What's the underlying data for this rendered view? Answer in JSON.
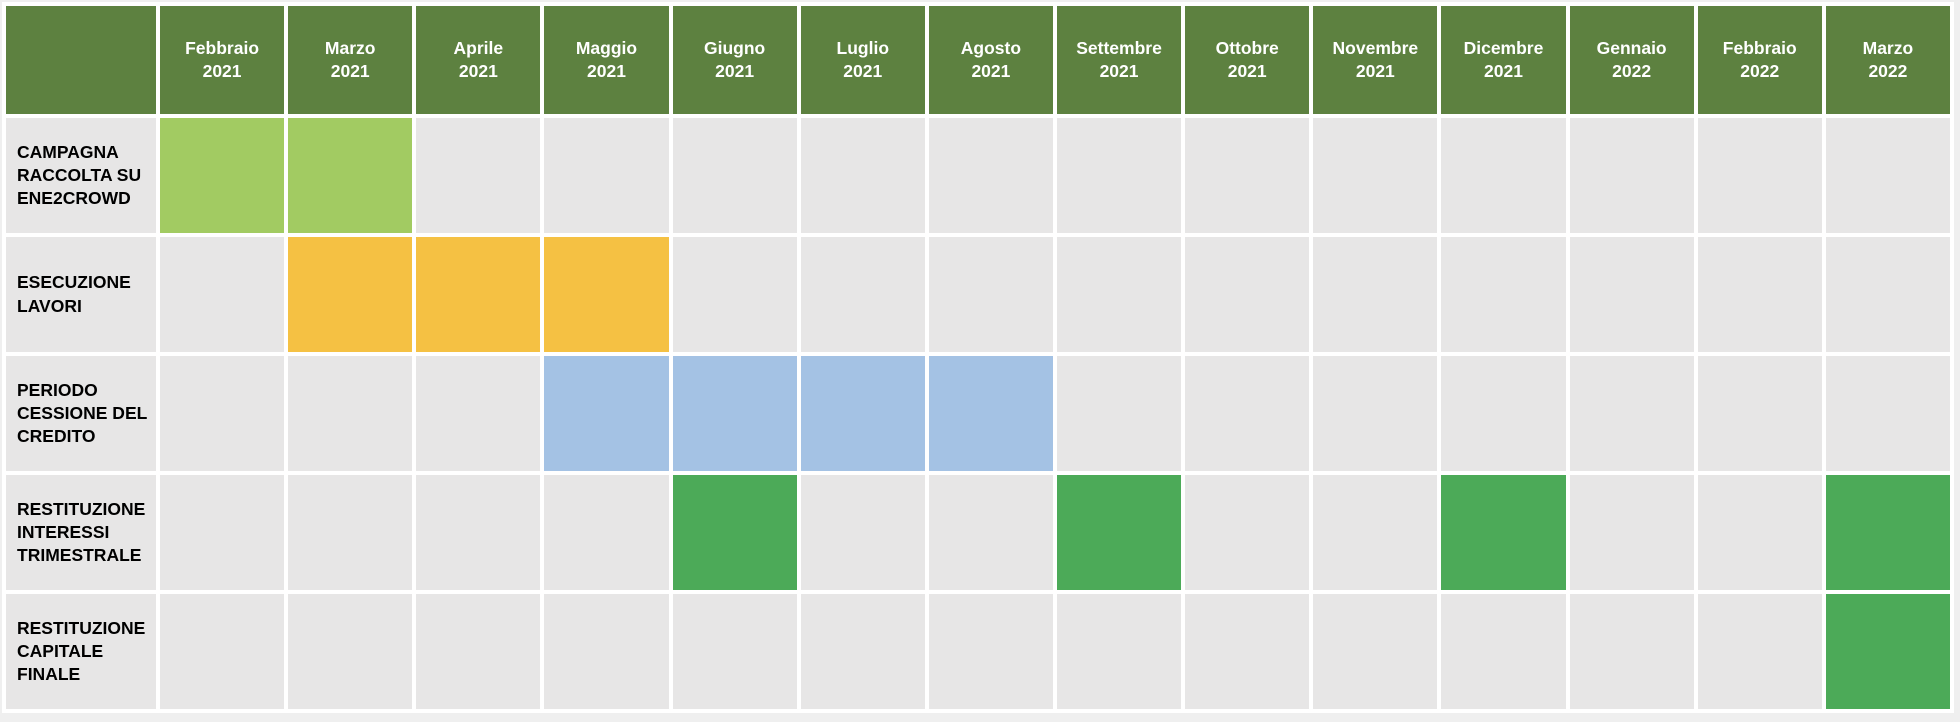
{
  "colors": {
    "outer_background": "#efefef",
    "grid_gap": "#ffffff",
    "header_background": "#5d8140",
    "header_text": "#ffffff",
    "empty_cell": "#e7e6e6",
    "label_cell_background": "#e7e6e6",
    "label_text": "#000000",
    "fill_light_green": "#a2cb62",
    "fill_orange": "#f5c143",
    "fill_blue": "#a4c2e4",
    "fill_green": "#4caa58"
  },
  "header": {
    "corner_label": "",
    "months": [
      {
        "month": "Febbraio",
        "year": "2021"
      },
      {
        "month": "Marzo",
        "year": "2021"
      },
      {
        "month": "Aprile",
        "year": "2021"
      },
      {
        "month": "Maggio",
        "year": "2021"
      },
      {
        "month": "Giugno",
        "year": "2021"
      },
      {
        "month": "Luglio",
        "year": "2021"
      },
      {
        "month": "Agosto",
        "year": "2021"
      },
      {
        "month": "Settembre",
        "year": "2021"
      },
      {
        "month": "Ottobre",
        "year": "2021"
      },
      {
        "month": "Novembre",
        "year": "2021"
      },
      {
        "month": "Dicembre",
        "year": "2021"
      },
      {
        "month": "Gennaio",
        "year": "2022"
      },
      {
        "month": "Febbraio",
        "year": "2022"
      },
      {
        "month": "Marzo",
        "year": "2022"
      }
    ]
  },
  "rows": [
    {
      "label": "CAMPAGNA RACCOLTA SU ENE2CROWD",
      "fill": "fill_light_green",
      "filled_indexes": [
        0,
        1
      ]
    },
    {
      "label": "ESECUZIONE LAVORI",
      "fill": "fill_orange",
      "filled_indexes": [
        1,
        2,
        3
      ]
    },
    {
      "label": "PERIODO CESSIONE DEL CREDITO",
      "fill": "fill_blue",
      "filled_indexes": [
        3,
        4,
        5,
        6
      ]
    },
    {
      "label": "RESTITUZIONE INTERESSI TRIMESTRALE",
      "fill": "fill_green",
      "filled_indexes": [
        4,
        7,
        10,
        13
      ]
    },
    {
      "label": "RESTITUZIONE CAPITALE FINALE",
      "fill": "fill_green",
      "filled_indexes": [
        13
      ]
    }
  ],
  "chart_data": {
    "type": "gantt",
    "title": "",
    "categories": [
      "Febbraio 2021",
      "Marzo 2021",
      "Aprile 2021",
      "Maggio 2021",
      "Giugno 2021",
      "Luglio 2021",
      "Agosto 2021",
      "Settembre 2021",
      "Ottobre 2021",
      "Novembre 2021",
      "Dicembre 2021",
      "Gennaio 2022",
      "Febbraio 2022",
      "Marzo 2022"
    ],
    "series": [
      {
        "name": "CAMPAGNA RACCOLTA SU ENE2CROWD",
        "color": "#a2cb62",
        "active_months": [
          "Febbraio 2021",
          "Marzo 2021"
        ]
      },
      {
        "name": "ESECUZIONE LAVORI",
        "color": "#f5c143",
        "active_months": [
          "Marzo 2021",
          "Aprile 2021",
          "Maggio 2021"
        ]
      },
      {
        "name": "PERIODO CESSIONE DEL CREDITO",
        "color": "#a4c2e4",
        "active_months": [
          "Maggio 2021",
          "Giugno 2021",
          "Luglio 2021",
          "Agosto 2021"
        ]
      },
      {
        "name": "RESTITUZIONE INTERESSI TRIMESTRALE",
        "color": "#4caa58",
        "active_months": [
          "Giugno 2021",
          "Settembre 2021",
          "Dicembre 2021",
          "Marzo 2022"
        ]
      },
      {
        "name": "RESTITUZIONE CAPITALE FINALE",
        "color": "#4caa58",
        "active_months": [
          "Marzo 2022"
        ]
      }
    ],
    "legend": false,
    "grid": "white gaps between cells",
    "layout": "matrix of month columns x phase rows; filled cell = phase active that month"
  }
}
